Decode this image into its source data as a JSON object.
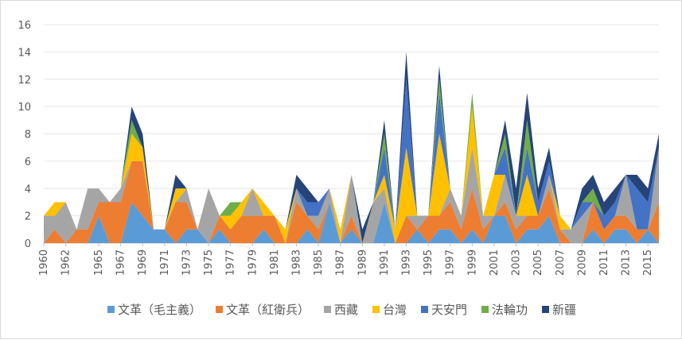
{
  "chart_data": {
    "type": "area",
    "stacked": true,
    "x": [
      1960,
      1961,
      1962,
      1963,
      1964,
      1965,
      1966,
      1967,
      1968,
      1969,
      1970,
      1971,
      1972,
      1973,
      1974,
      1975,
      1976,
      1977,
      1978,
      1979,
      1980,
      1981,
      1982,
      1983,
      1984,
      1985,
      1986,
      1987,
      1988,
      1989,
      1990,
      1991,
      1992,
      1993,
      1994,
      1995,
      1996,
      1997,
      1998,
      1999,
      2000,
      2001,
      2002,
      2003,
      2004,
      2005,
      2006,
      2007,
      2008,
      2009,
      2010,
      2011,
      2012,
      2013,
      2014,
      2015,
      2016
    ],
    "x_tick_labels": [
      "1960",
      "1962",
      "1965",
      "1967",
      "1969",
      "1971",
      "1973",
      "1975",
      "1977",
      "1979",
      "1981",
      "1983",
      "1985",
      "1987",
      "1989",
      "1991",
      "1993",
      "1995",
      "1997",
      "1999",
      "2001",
      "2003",
      "2005",
      "2007",
      "2009",
      "2011",
      "2013",
      "2015"
    ],
    "ylim": [
      0,
      16
    ],
    "y_ticks": [
      0,
      2,
      4,
      6,
      8,
      10,
      12,
      14,
      16
    ],
    "grid": true,
    "legend_position": "bottom",
    "series": [
      {
        "name": "文革（毛主義）",
        "color": "#5b9bd5",
        "values": [
          0,
          0,
          0,
          0,
          0,
          2,
          0,
          0,
          3,
          2,
          1,
          1,
          0,
          1,
          1,
          0,
          1,
          0,
          0,
          0,
          1,
          0,
          0,
          0,
          1,
          0,
          3,
          0,
          1,
          0,
          0,
          3,
          0,
          0,
          1,
          0,
          1,
          1,
          0,
          1,
          0,
          2,
          2,
          0,
          1,
          1,
          2,
          0,
          0,
          0,
          1,
          0,
          1,
          1,
          0,
          1,
          0
        ]
      },
      {
        "name": "文革（紅衛兵）",
        "color": "#ed7d31",
        "values": [
          0,
          1,
          0,
          1,
          1,
          1,
          3,
          3,
          3,
          4,
          0,
          0,
          3,
          2,
          0,
          0,
          1,
          1,
          2,
          2,
          1,
          2,
          0,
          3,
          1,
          1,
          0,
          0,
          1,
          0,
          0,
          0,
          0,
          2,
          0,
          2,
          1,
          2,
          1,
          3,
          1,
          0,
          1,
          1,
          1,
          1,
          2,
          1,
          0,
          0,
          2,
          1,
          1,
          1,
          1,
          0,
          3
        ]
      },
      {
        "name": "西藏",
        "color": "#a5a5a5",
        "values": [
          2,
          1,
          3,
          0,
          3,
          1,
          0,
          1,
          0,
          0,
          0,
          0,
          0,
          1,
          0,
          4,
          0,
          0,
          0,
          2,
          0,
          0,
          0,
          1,
          0,
          1,
          1,
          0,
          3,
          0,
          3,
          1,
          0,
          0,
          1,
          0,
          0,
          1,
          1,
          3,
          1,
          0,
          2,
          1,
          0,
          0,
          1,
          0,
          1,
          2,
          0,
          0,
          0,
          3,
          0,
          0,
          4
        ]
      },
      {
        "name": "台灣",
        "color": "#ffc000",
        "values": [
          0,
          1,
          0,
          0,
          0,
          0,
          0,
          0,
          2,
          1,
          0,
          0,
          1,
          0,
          0,
          0,
          0,
          1,
          1,
          0,
          1,
          0,
          1,
          0,
          0,
          0,
          0,
          1,
          0,
          0,
          0,
          1,
          1,
          5,
          0,
          0,
          6,
          0,
          0,
          3,
          0,
          3,
          0,
          0,
          3,
          0,
          0,
          1,
          0,
          0,
          0,
          0,
          0,
          0,
          0,
          0,
          0
        ]
      },
      {
        "name": "天安門",
        "color": "#4472c4",
        "values": [
          0,
          0,
          0,
          0,
          0,
          0,
          0,
          0,
          0,
          0,
          0,
          0,
          0,
          0,
          0,
          0,
          0,
          0,
          0,
          0,
          0,
          0,
          0,
          0,
          1,
          1,
          0,
          0,
          0,
          0,
          0,
          2,
          0,
          5,
          0,
          0,
          3,
          0,
          0,
          0,
          0,
          0,
          2,
          0,
          2,
          1,
          1,
          0,
          0,
          1,
          0,
          1,
          1,
          0,
          3,
          2,
          0
        ]
      },
      {
        "name": "法輪功",
        "color": "#70ad47",
        "values": [
          0,
          0,
          0,
          0,
          0,
          0,
          0,
          0,
          1,
          0,
          0,
          0,
          0,
          0,
          0,
          0,
          0,
          1,
          0,
          0,
          0,
          0,
          0,
          0,
          0,
          0,
          0,
          0,
          0,
          0,
          0,
          1,
          0,
          0,
          0,
          0,
          1,
          0,
          0,
          1,
          0,
          0,
          1,
          0,
          2,
          0,
          0,
          0,
          0,
          0,
          1,
          0,
          0,
          0,
          0,
          0,
          0
        ]
      },
      {
        "name": "新疆",
        "color": "#264478",
        "values": [
          0,
          0,
          0,
          0,
          0,
          0,
          0,
          0,
          1,
          1,
          0,
          0,
          1,
          0,
          0,
          0,
          0,
          0,
          0,
          0,
          0,
          0,
          0,
          1,
          1,
          0,
          0,
          0,
          0,
          1,
          0,
          1,
          0,
          2,
          0,
          0,
          1,
          0,
          0,
          0,
          0,
          0,
          1,
          2,
          2,
          1,
          1,
          0,
          0,
          1,
          1,
          1,
          1,
          0,
          1,
          1,
          1
        ]
      }
    ]
  }
}
